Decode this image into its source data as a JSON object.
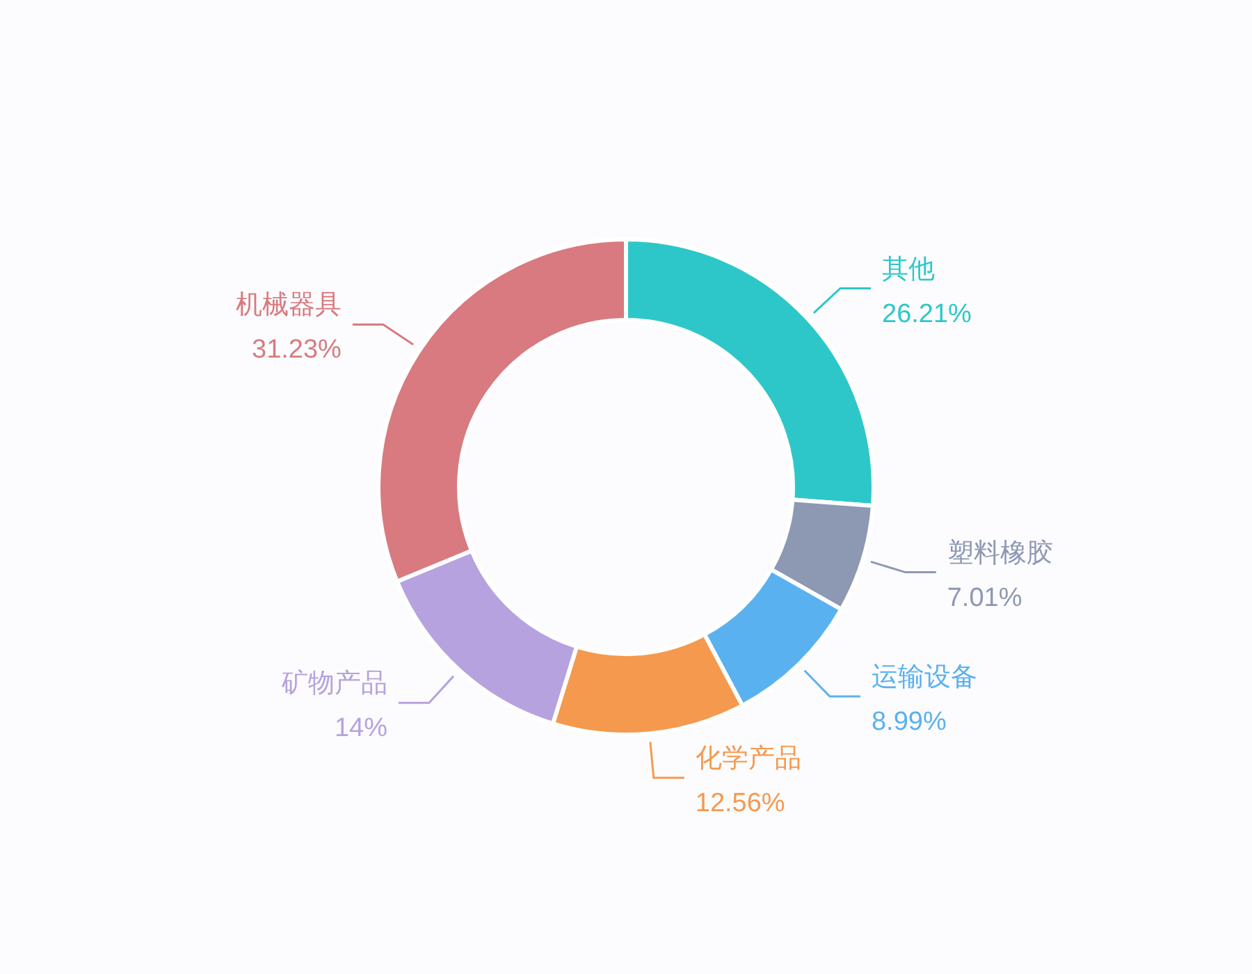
{
  "chart_data": {
    "type": "donut",
    "categories": [
      "其他",
      "塑料橡胶",
      "运输设备",
      "化学产品",
      "矿物产品",
      "机械器具"
    ],
    "values": [
      26.21,
      7.01,
      8.99,
      12.56,
      14,
      31.23
    ],
    "value_labels": [
      "26.21%",
      "7.01%",
      "8.99%",
      "12.56%",
      "14%",
      "31.23%"
    ],
    "colors": [
      "#2ec7c9",
      "#8d98b3",
      "#5ab1ef",
      "#f5994e",
      "#b6a2de",
      "#d87a80"
    ]
  }
}
